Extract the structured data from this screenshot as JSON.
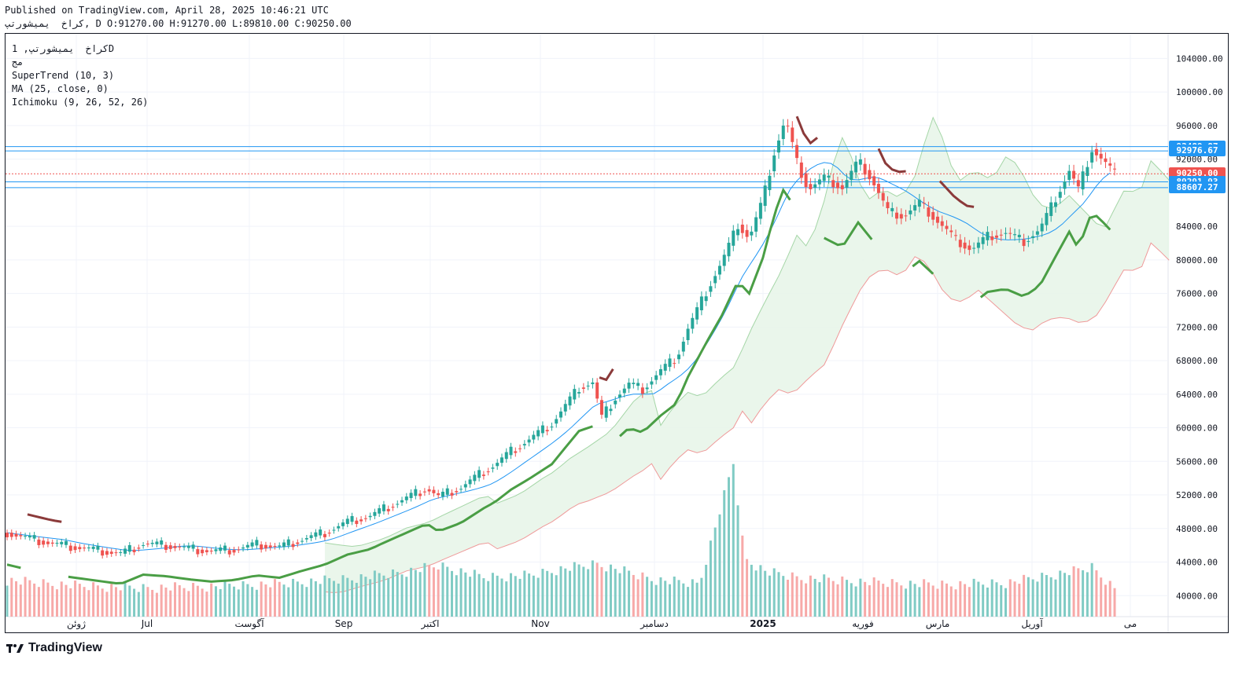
{
  "header": {
    "published": "Published on TradingView.com, April 28, 2025 10:46:21 UTC",
    "symbol_line": "كراخ  يميشورتپ, D O:91270.00 H:91270.00 L:89810.00 C:90250.00"
  },
  "legend": {
    "symbol": "كراخ  يميشورتپ, 1D",
    "exchange": "مج",
    "indicators": [
      "SuperTrend (10, 3)",
      "MA (25, close, 0)",
      "Ichimoku (9, 26, 52, 26)"
    ]
  },
  "footer": {
    "brand": "TradingView",
    "logo_icon": "tradingview-logo-icon"
  },
  "colors": {
    "up": "#26a69a",
    "down": "#ef5350",
    "supertrend_up": "#4a9e45",
    "supertrend_down": "#8b3a3a",
    "ma": "#2196f3",
    "cloud_up": "#e8f5e9",
    "cloud_down": "#fde4e4",
    "hline": "#2196f3",
    "volume_up": "#80cbc4",
    "volume_down": "#f7a9a8"
  },
  "chart_data": {
    "type": "candlestick",
    "timeframe": "1D",
    "last": {
      "open": 91270.0,
      "high": 91270.0,
      "low": 89810.0,
      "close": 90250.0
    },
    "price_axis": {
      "range": [
        37500,
        106000
      ],
      "ticks": [
        "104000.00",
        "100000.00",
        "96000.00",
        "92000.00",
        "84000.00",
        "80000.00",
        "76000.00",
        "72000.00",
        "68000.00",
        "64000.00",
        "60000.00",
        "56000.00",
        "52000.00",
        "48000.00",
        "44000.00",
        "40000.00"
      ]
    },
    "time_axis": {
      "labels": [
        "ژوئن",
        "Jul",
        "آگوست",
        "Sep",
        "اکتبر",
        "Nov",
        "دسامبر",
        "2025",
        "فوریه",
        "مارس",
        "آوریل",
        "می"
      ]
    },
    "price_tags": [
      {
        "value": "93489.87",
        "color": "#2196f3"
      },
      {
        "value": "92976.67",
        "color": "#2196f3"
      },
      {
        "value": "90250.00",
        "color": "#ef5350"
      },
      {
        "value": "89291.93",
        "color": "#2196f3"
      },
      {
        "value": "88607.27",
        "color": "#2196f3"
      }
    ],
    "horizontal_lines": [
      93489.87,
      92976.67,
      89291.93,
      88607.27
    ],
    "close_series": [
      [
        0,
        47500
      ],
      [
        10,
        46800
      ],
      [
        20,
        46200
      ],
      [
        30,
        45800
      ],
      [
        40,
        45400
      ],
      [
        50,
        45000
      ],
      [
        60,
        46200
      ],
      [
        70,
        46000
      ],
      [
        80,
        45600
      ],
      [
        90,
        45300
      ],
      [
        100,
        45500
      ],
      [
        110,
        46100
      ],
      [
        120,
        45800
      ],
      [
        130,
        46700
      ],
      [
        140,
        47500
      ],
      [
        150,
        48800
      ],
      [
        160,
        49500
      ],
      [
        165,
        50200
      ],
      [
        175,
        51500
      ],
      [
        185,
        52800
      ],
      [
        190,
        51800
      ],
      [
        200,
        52900
      ],
      [
        210,
        54800
      ],
      [
        215,
        55600
      ],
      [
        222,
        57200
      ],
      [
        230,
        58600
      ],
      [
        240,
        60500
      ],
      [
        245,
        62300
      ],
      [
        252,
        64800
      ],
      [
        258,
        65400
      ],
      [
        262,
        61200
      ],
      [
        268,
        63600
      ],
      [
        274,
        65200
      ],
      [
        280,
        64600
      ],
      [
        288,
        66800
      ],
      [
        295,
        68400
      ],
      [
        300,
        71800
      ],
      [
        308,
        76200
      ],
      [
        315,
        79800
      ],
      [
        322,
        84200
      ],
      [
        327,
        82600
      ],
      [
        333,
        87200
      ],
      [
        338,
        92800
      ],
      [
        343,
        96800
      ],
      [
        348,
        91600
      ],
      [
        353,
        88400
      ],
      [
        360,
        89800
      ],
      [
        368,
        88600
      ],
      [
        375,
        91800
      ],
      [
        381,
        89600
      ],
      [
        388,
        85800
      ],
      [
        395,
        85200
      ],
      [
        402,
        86800
      ],
      [
        410,
        84600
      ],
      [
        418,
        82400
      ],
      [
        425,
        81200
      ],
      [
        432,
        82800
      ],
      [
        440,
        83200
      ],
      [
        448,
        82200
      ],
      [
        455,
        83600
      ],
      [
        462,
        87400
      ],
      [
        468,
        90600
      ],
      [
        472,
        88400
      ],
      [
        478,
        93200
      ],
      [
        483,
        91800
      ],
      [
        488,
        90250
      ]
    ],
    "volume_series": [
      [
        0,
        41200
      ],
      [
        30,
        40600
      ],
      [
        60,
        40300
      ],
      [
        90,
        40500
      ],
      [
        120,
        40800
      ],
      [
        150,
        41400
      ],
      [
        175,
        42200
      ],
      [
        190,
        43000
      ],
      [
        210,
        41600
      ],
      [
        230,
        41800
      ],
      [
        245,
        42600
      ],
      [
        260,
        43200
      ],
      [
        285,
        41300
      ],
      [
        305,
        40800
      ],
      [
        320,
        55200
      ],
      [
        325,
        43800
      ],
      [
        335,
        42200
      ],
      [
        350,
        41500
      ],
      [
        380,
        41000
      ],
      [
        410,
        40700
      ],
      [
        440,
        40900
      ],
      [
        470,
        42300
      ],
      [
        478,
        42800
      ],
      [
        488,
        40300
      ]
    ],
    "indicators": [
      "SuperTrend (10, 3)",
      "MA (25, close, 0)",
      "Ichimoku (9, 26, 52, 26)"
    ]
  }
}
